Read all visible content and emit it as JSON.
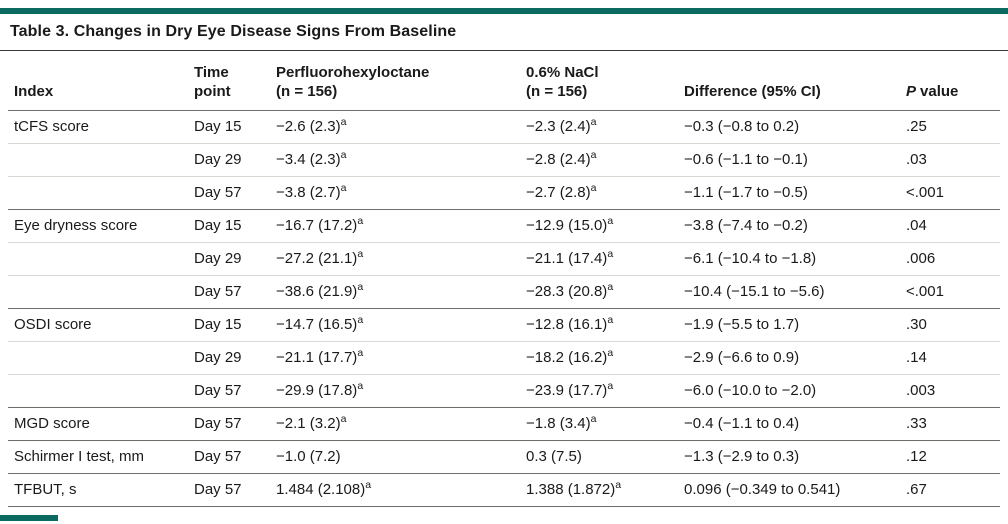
{
  "colors": {
    "accent_teal": "#0b6a5f",
    "rule_dark": "#6f6f69",
    "rule_light": "#d9d9d3",
    "text": "#1a1a1a"
  },
  "title": "Table 3. Changes in Dry Eye Disease Signs From Baseline",
  "table": {
    "headers": {
      "index": "Index",
      "time": {
        "line1": "Time",
        "line2": "point"
      },
      "pfh": {
        "line1": "Perfluorohexyloctane",
        "line2": "(n = 156)"
      },
      "nacl": {
        "line1": "0.6% NaCl",
        "line2": "(n = 156)"
      },
      "diff": "Difference (95% CI)",
      "p": {
        "italic": "P",
        "rest": "value"
      }
    },
    "footnote_marker": "a",
    "rows": [
      {
        "index": "tCFS score",
        "time": "Day 15",
        "pfh": "−2.6 (2.3)",
        "pfh_sup": "a",
        "nacl": "−2.3 (2.4)",
        "nacl_sup": "a",
        "diff": "−0.3 (−0.8 to 0.2)",
        "p": ".25"
      },
      {
        "index": "",
        "time": "Day 29",
        "pfh": "−3.4 (2.3)",
        "pfh_sup": "a",
        "nacl": "−2.8 (2.4)",
        "nacl_sup": "a",
        "diff": "−0.6 (−1.1 to −0.1)",
        "p": ".03"
      },
      {
        "index": "",
        "time": "Day 57",
        "pfh": "−3.8 (2.7)",
        "pfh_sup": "a",
        "nacl": "−2.7 (2.8)",
        "nacl_sup": "a",
        "diff": "−1.1 (−1.7 to −0.5)",
        "p": "<.001"
      },
      {
        "index": "Eye dryness score",
        "time": "Day 15",
        "pfh": "−16.7 (17.2)",
        "pfh_sup": "a",
        "nacl": "−12.9 (15.0)",
        "nacl_sup": "a",
        "diff": "−3.8 (−7.4 to −0.2)",
        "p": ".04"
      },
      {
        "index": "",
        "time": "Day 29",
        "pfh": "−27.2 (21.1)",
        "pfh_sup": "a",
        "nacl": "−21.1 (17.4)",
        "nacl_sup": "a",
        "diff": "−6.1 (−10.4 to −1.8)",
        "p": ".006"
      },
      {
        "index": "",
        "time": "Day 57",
        "pfh": "−38.6 (21.9)",
        "pfh_sup": "a",
        "nacl": "−28.3 (20.8)",
        "nacl_sup": "a",
        "diff": "−10.4 (−15.1 to −5.6)",
        "p": "<.001"
      },
      {
        "index": "OSDI score",
        "time": "Day 15",
        "pfh": "−14.7 (16.5)",
        "pfh_sup": "a",
        "nacl": "−12.8 (16.1)",
        "nacl_sup": "a",
        "diff": "−1.9 (−5.5 to 1.7)",
        "p": ".30"
      },
      {
        "index": "",
        "time": "Day 29",
        "pfh": "−21.1 (17.7)",
        "pfh_sup": "a",
        "nacl": "−18.2 (16.2)",
        "nacl_sup": "a",
        "diff": "−2.9 (−6.6 to 0.9)",
        "p": ".14"
      },
      {
        "index": "",
        "time": "Day 57",
        "pfh": "−29.9 (17.8)",
        "pfh_sup": "a",
        "nacl": "−23.9 (17.7)",
        "nacl_sup": "a",
        "diff": "−6.0 (−10.0 to −2.0)",
        "p": ".003"
      },
      {
        "index": "MGD score",
        "time": "Day 57",
        "pfh": "−2.1 (3.2)",
        "pfh_sup": "a",
        "nacl": "−1.8 (3.4)",
        "nacl_sup": "a",
        "diff": "−0.4 (−1.1 to 0.4)",
        "p": ".33"
      },
      {
        "index": "Schirmer I test, mm",
        "time": "Day 57",
        "pfh": "−1.0 (7.2)",
        "pfh_sup": "",
        "nacl": "0.3 (7.5)",
        "nacl_sup": "",
        "diff": "−1.3 (−2.9 to 0.3)",
        "p": ".12"
      },
      {
        "index": "TFBUT, s",
        "time": "Day 57",
        "pfh": "1.484 (2.108)",
        "pfh_sup": "a",
        "nacl": "1.388 (1.872)",
        "nacl_sup": "a",
        "diff": "0.096 (−0.349 to 0.541)",
        "p": ".67"
      }
    ]
  }
}
